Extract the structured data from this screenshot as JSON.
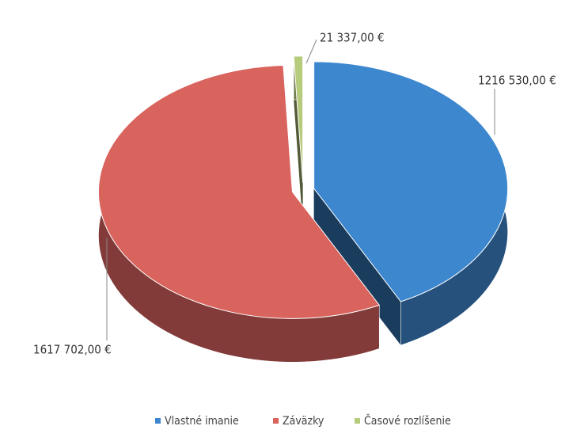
{
  "chart_data": {
    "type": "pie",
    "categories": [
      "Vlastné imanie",
      "Záväzky",
      "Časové rozlíšenie"
    ],
    "values": [
      1216530,
      1617702,
      21337
    ],
    "value_labels": [
      "1216 530,00 €",
      "1617 702,00 €",
      "21 337,00 €"
    ],
    "colors": [
      "#3d87cf",
      "#d9635d",
      "#b7cb7c"
    ],
    "legend": "bottom"
  }
}
